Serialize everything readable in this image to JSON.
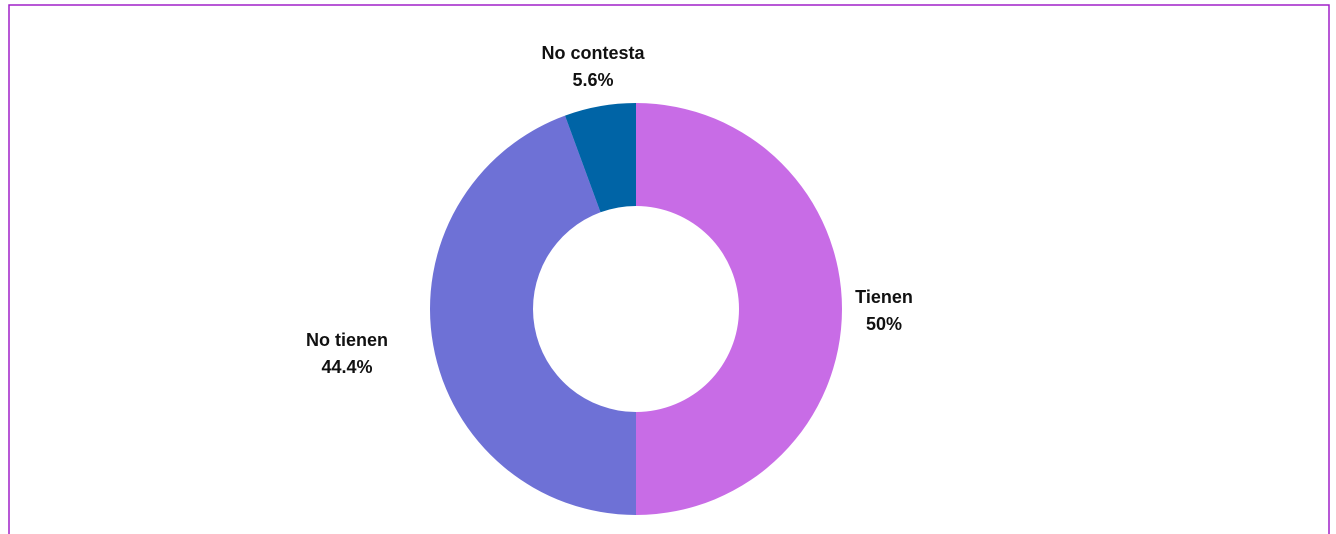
{
  "chart_data": {
    "type": "pie",
    "variant": "donut",
    "categories": [
      "Tienen",
      "No tienen",
      "No contesta"
    ],
    "values": [
      50,
      44.4,
      5.6
    ],
    "value_labels": [
      "50%",
      "44.4%",
      "5.6%"
    ],
    "colors": [
      "#c86ce6",
      "#6e71d6",
      "#0064a6"
    ],
    "legend": "none",
    "frame_color": "#a020c8"
  }
}
